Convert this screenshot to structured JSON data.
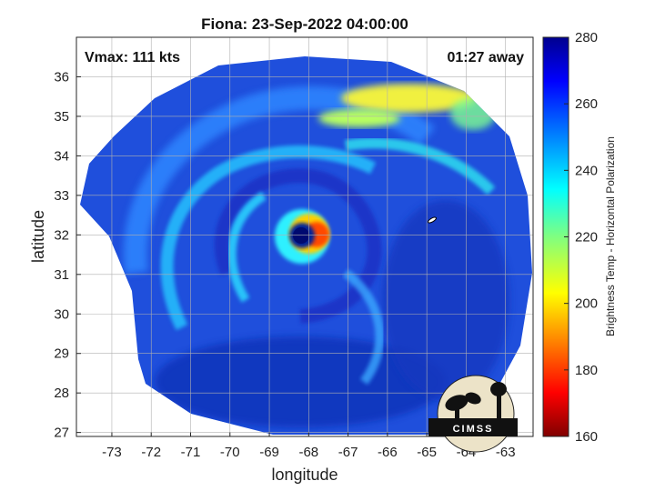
{
  "chart_data": {
    "type": "heatmap",
    "title": "Fiona: 23-Sep-2022 04:00:00",
    "xlabel": "longitude",
    "ylabel": "latitude",
    "xlim": [
      -73.9,
      -62.3
    ],
    "ylim": [
      26.9,
      37.0
    ],
    "xticks": [
      -73,
      -72,
      -71,
      -70,
      -69,
      -68,
      -67,
      -66,
      -65,
      -64,
      -63
    ],
    "yticks": [
      27,
      28,
      29,
      30,
      31,
      32,
      33,
      34,
      35,
      36
    ],
    "grid": true,
    "colorbar": {
      "label": "Brightness Temp - Horizontal Polarization",
      "min": 160,
      "max": 280,
      "ticks": [
        160,
        180,
        200,
        220,
        240,
        260,
        280
      ],
      "colormap": "jet"
    },
    "storm_center": {
      "lon": -68.0,
      "lat": 31.9
    },
    "swath": {
      "center_lon": -68.2,
      "center_lat": 31.8
    },
    "annotations": {
      "vmax": "Vmax: 111 kts",
      "time_offset": "01:27 away"
    },
    "logo_text": "CIMSS"
  },
  "colors": {
    "background": "#ffffff",
    "cold": "#800000",
    "warm": "#00008f",
    "swath_base": "#1f4fdc"
  }
}
